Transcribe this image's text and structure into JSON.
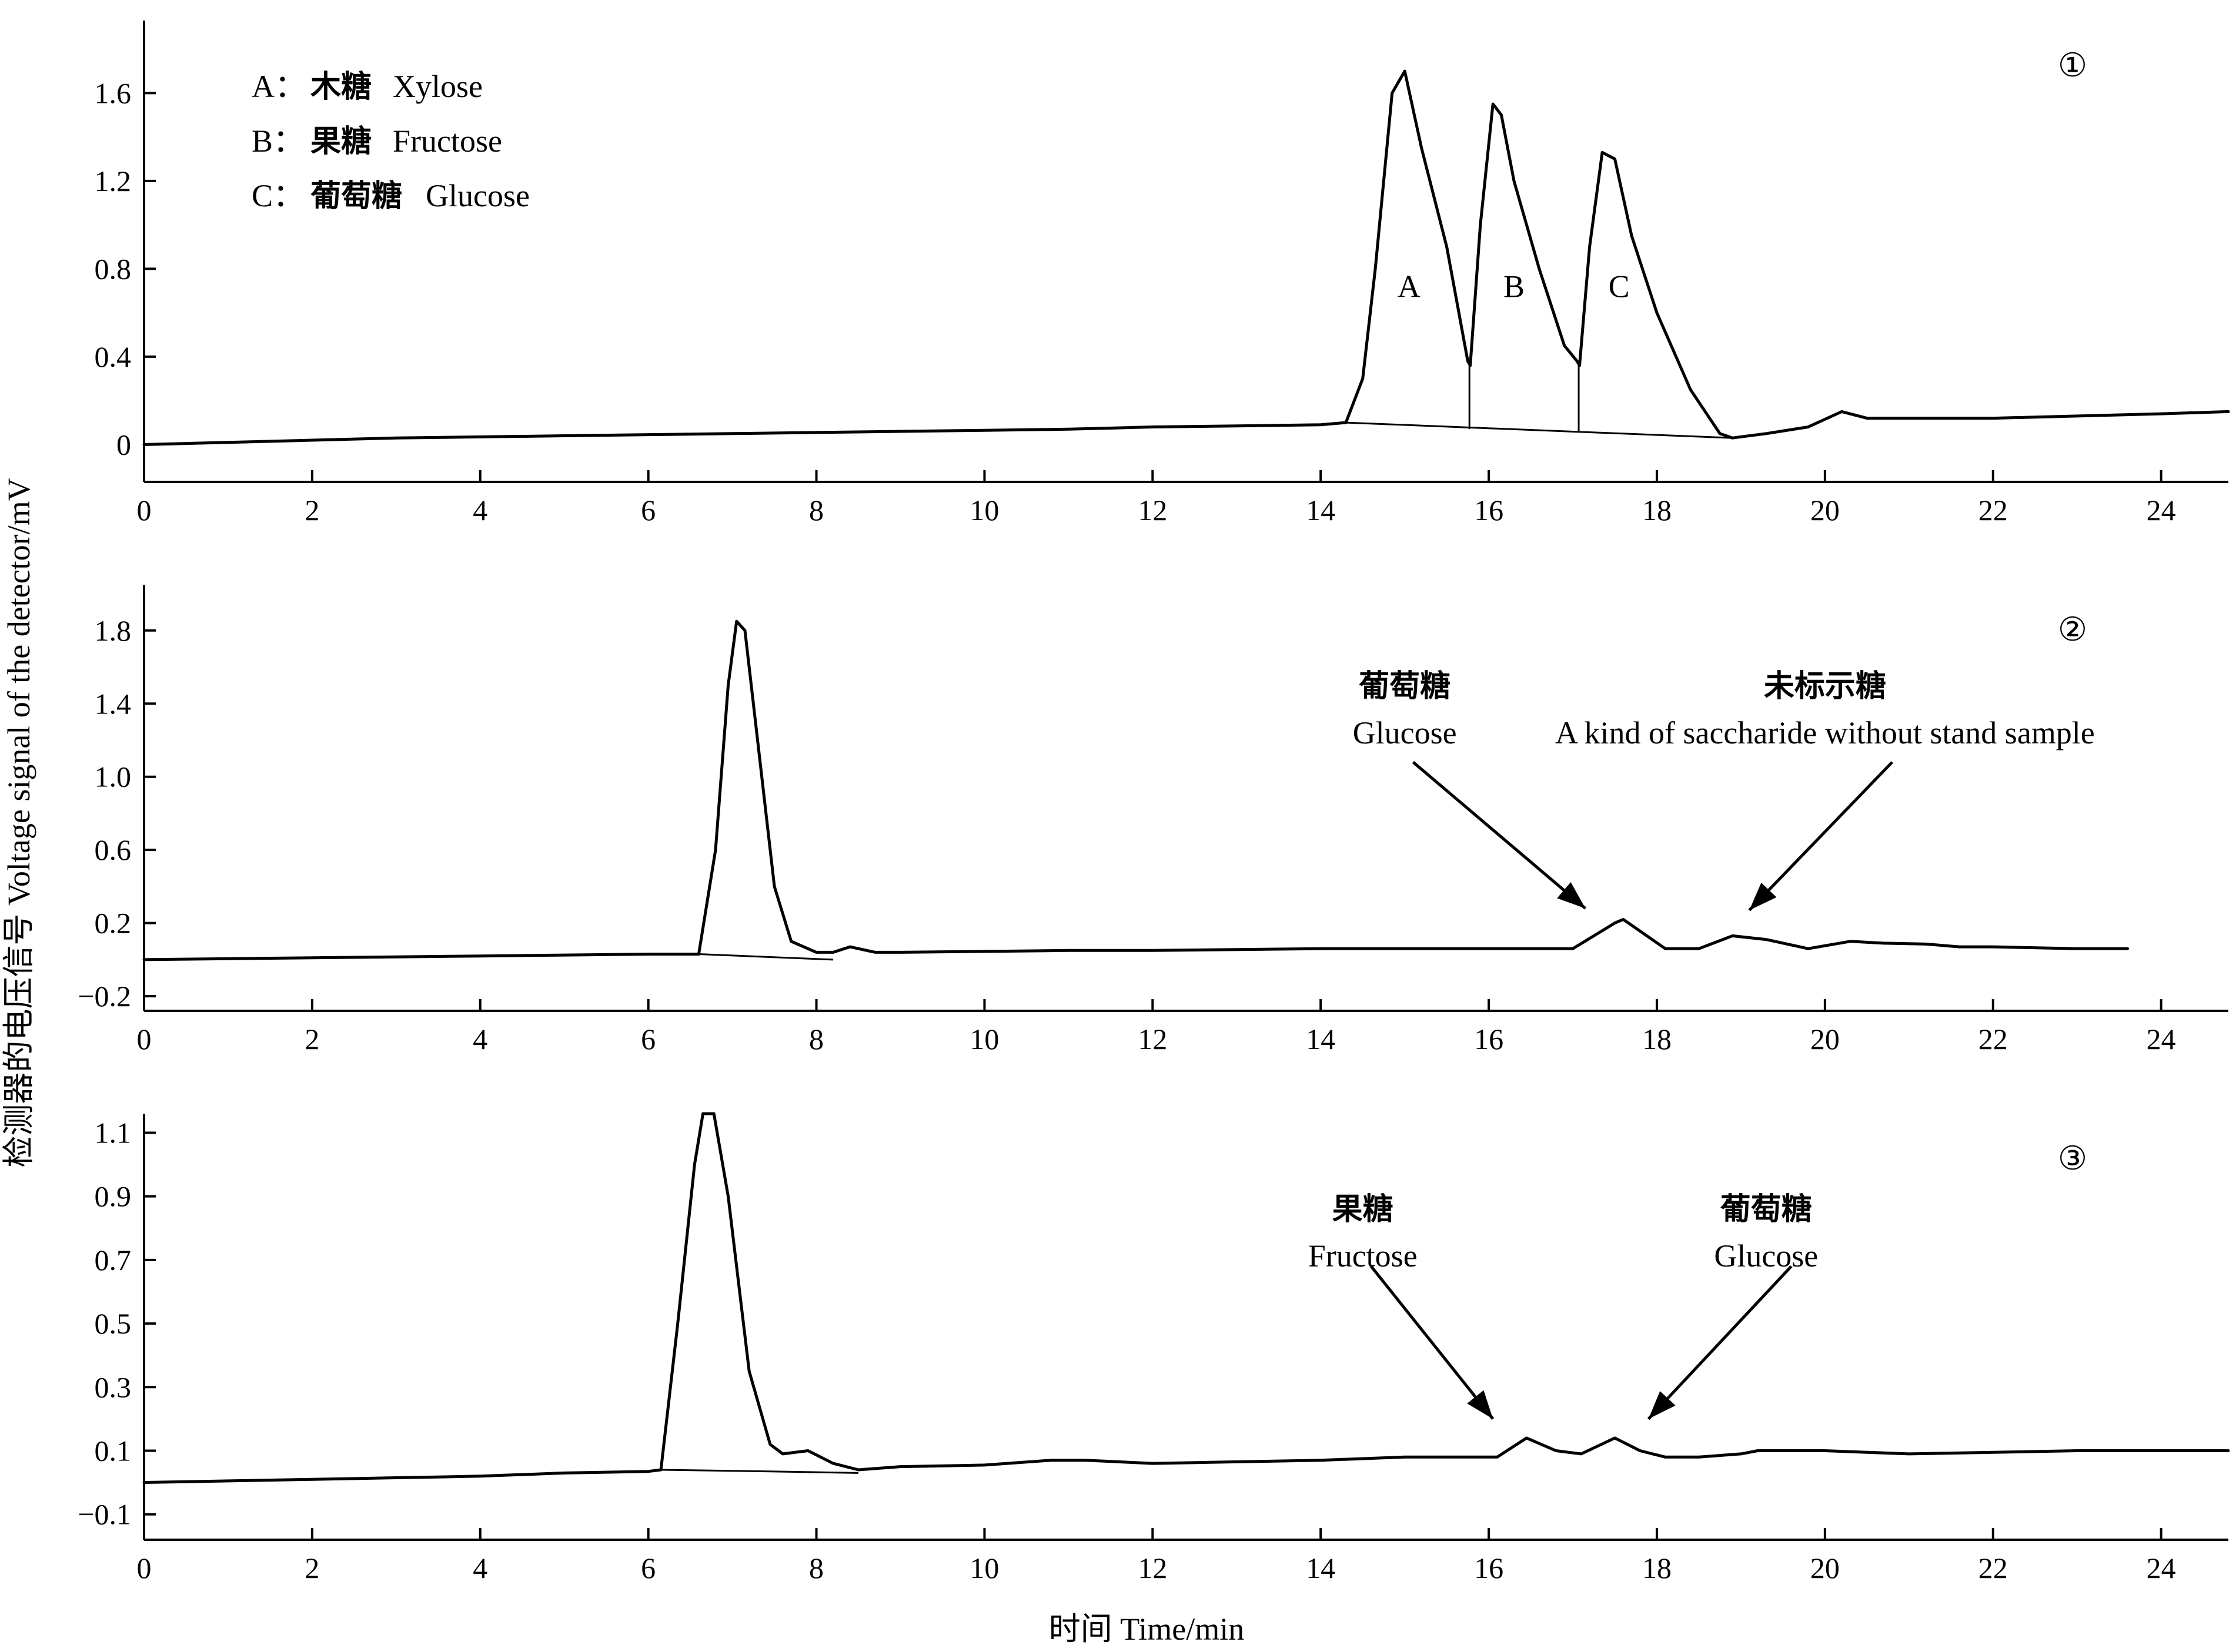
{
  "axis_labels": {
    "ylabel": "检测器的电压信号 Voltage signal of the detector/mV",
    "xlabel": "时间 Time/min"
  },
  "chart_data": [
    {
      "type": "line",
      "panel": "①",
      "x_ticks": [
        0,
        2,
        4,
        6,
        8,
        10,
        12,
        14,
        16,
        18,
        20,
        22,
        24
      ],
      "y_ticks": [
        0,
        0.4,
        0.8,
        1.2,
        1.6
      ],
      "xlim": [
        0,
        24.8
      ],
      "ylim": [
        -0.17,
        1.93
      ],
      "series": [
        {
          "x": [
            0,
            1,
            2,
            3,
            4,
            5,
            6,
            7,
            8,
            9,
            10,
            11,
            12,
            13,
            14,
            14.3,
            14.5,
            14.65,
            14.85,
            15.0,
            15.2,
            15.5,
            15.75,
            15.78,
            15.9,
            16.05,
            16.15,
            16.3,
            16.6,
            16.9,
            17.05,
            17.08,
            17.2,
            17.35,
            17.5,
            17.7,
            18.0,
            18.4,
            18.75,
            18.9,
            19.3,
            19.8,
            20.2,
            20.5,
            21,
            22,
            23,
            24,
            24.8
          ],
          "y": [
            0,
            0.01,
            0.02,
            0.03,
            0.035,
            0.04,
            0.045,
            0.05,
            0.055,
            0.06,
            0.065,
            0.07,
            0.08,
            0.085,
            0.09,
            0.1,
            0.3,
            0.8,
            1.6,
            1.7,
            1.35,
            0.9,
            0.38,
            0.36,
            1.0,
            1.55,
            1.5,
            1.2,
            0.8,
            0.45,
            0.38,
            0.36,
            0.9,
            1.33,
            1.3,
            0.95,
            0.6,
            0.25,
            0.05,
            0.03,
            0.05,
            0.08,
            0.15,
            0.12,
            0.12,
            0.12,
            0.13,
            0.14,
            0.15
          ]
        }
      ],
      "peak_dividers": [
        {
          "x": 15.77,
          "y_top": 0.38,
          "y_bottom": 0.07
        },
        {
          "x": 17.07,
          "y_top": 0.38,
          "y_bottom": 0.06
        }
      ],
      "peak_baseline": {
        "x": [
          14.3,
          18.9
        ],
        "y": [
          0.1,
          0.03
        ]
      },
      "annotations": [
        {
          "text": "A",
          "x": 15.05,
          "y": 0.72
        },
        {
          "text": "B",
          "x": 16.3,
          "y": 0.72
        },
        {
          "text": "C",
          "x": 17.55,
          "y": 0.72
        }
      ],
      "legend": [
        {
          "key": "A：",
          "cn": "木糖",
          "en": "Xylose"
        },
        {
          "key": "B：",
          "cn": "果糖",
          "en": "Fructose"
        },
        {
          "key": "C：",
          "cn": "葡萄糖",
          "en": "Glucose"
        }
      ]
    },
    {
      "type": "line",
      "panel": "②",
      "x_ticks": [
        0,
        2,
        4,
        6,
        8,
        10,
        12,
        14,
        16,
        18,
        20,
        22,
        24
      ],
      "y_ticks": [
        -0.2,
        0.2,
        0.6,
        1.0,
        1.4,
        1.8
      ],
      "y_tick_labels": [
        "−0.2",
        "0.2",
        "0.6",
        "1.0",
        "1.4",
        "1.8"
      ],
      "xlim": [
        0,
        24.8
      ],
      "ylim": [
        -0.28,
        2.05
      ],
      "series": [
        {
          "x": [
            0,
            1,
            2,
            3,
            4,
            5,
            6,
            6.6,
            6.8,
            6.95,
            7.05,
            7.15,
            7.3,
            7.5,
            7.7,
            8.0,
            8.2,
            8.4,
            8.7,
            9,
            10,
            11,
            12,
            13,
            14,
            15,
            16,
            17,
            17.5,
            17.6,
            18.1,
            18.5,
            18.9,
            19.3,
            19.8,
            20.3,
            20.7,
            21.2,
            21.6,
            22,
            23,
            23.6
          ],
          "y": [
            0,
            0.005,
            0.01,
            0.015,
            0.02,
            0.025,
            0.03,
            0.03,
            0.6,
            1.5,
            1.85,
            1.8,
            1.2,
            0.4,
            0.1,
            0.04,
            0.04,
            0.07,
            0.04,
            0.04,
            0.045,
            0.05,
            0.05,
            0.055,
            0.06,
            0.06,
            0.06,
            0.06,
            0.2,
            0.22,
            0.06,
            0.06,
            0.13,
            0.11,
            0.06,
            0.1,
            0.09,
            0.085,
            0.07,
            0.07,
            0.06,
            0.06
          ]
        }
      ],
      "peak_baseline": {
        "x": [
          6.6,
          8.2
        ],
        "y": [
          0.03,
          0.0
        ]
      },
      "annotations": [
        {
          "cn": "葡萄糖",
          "en": "Glucose",
          "text_x": 15.0,
          "arrow_from_x": 15.1,
          "arrow_from_y": 1.08,
          "arrow_to_x": 17.15,
          "arrow_to_y": 0.28
        },
        {
          "cn": "未标示糖",
          "en": "A kind of saccharide without stand sample",
          "text_x": 20.0,
          "arrow_from_x": 20.8,
          "arrow_from_y": 1.08,
          "arrow_to_x": 19.1,
          "arrow_to_y": 0.27
        }
      ]
    },
    {
      "type": "line",
      "panel": "③",
      "x_ticks": [
        0,
        2,
        4,
        6,
        8,
        10,
        12,
        14,
        16,
        18,
        20,
        22,
        24
      ],
      "y_ticks": [
        -0.1,
        0.1,
        0.3,
        0.5,
        0.7,
        0.9,
        1.1
      ],
      "y_tick_labels": [
        "−0.1",
        "0.1",
        "0.3",
        "0.5",
        "0.7",
        "0.9",
        "1.1"
      ],
      "xlim": [
        0,
        24.8
      ],
      "ylim": [
        -0.18,
        1.16
      ],
      "series": [
        {
          "x": [
            0,
            1,
            2,
            3,
            4,
            5,
            6,
            6.15,
            6.35,
            6.55,
            6.65,
            6.78,
            6.95,
            7.2,
            7.45,
            7.6,
            7.9,
            8.2,
            8.5,
            9,
            10,
            10.8,
            11.2,
            12,
            13,
            14,
            15,
            16,
            16.1,
            16.45,
            16.8,
            17.1,
            17.5,
            17.8,
            18.1,
            18.5,
            19,
            19.2,
            20,
            21,
            22,
            23,
            24,
            24.8
          ],
          "y": [
            0,
            0.005,
            0.01,
            0.015,
            0.02,
            0.03,
            0.035,
            0.04,
            0.5,
            1.0,
            1.16,
            1.16,
            0.9,
            0.35,
            0.12,
            0.09,
            0.1,
            0.06,
            0.04,
            0.05,
            0.055,
            0.07,
            0.07,
            0.06,
            0.065,
            0.07,
            0.08,
            0.08,
            0.08,
            0.14,
            0.1,
            0.09,
            0.14,
            0.1,
            0.08,
            0.08,
            0.09,
            0.1,
            0.1,
            0.09,
            0.095,
            0.1,
            0.1,
            0.1
          ]
        }
      ],
      "peak_baseline": {
        "x": [
          6.15,
          7.45,
          8.5
        ],
        "y": [
          0.04,
          0.035,
          0.03
        ]
      },
      "annotations": [
        {
          "cn": "果糖",
          "en": "Fructose",
          "text_x": 14.5,
          "arrow_from_x": 14.6,
          "arrow_from_y": 0.68,
          "arrow_to_x": 16.05,
          "arrow_to_y": 0.2
        },
        {
          "cn": "葡萄糖",
          "en": "Glucose",
          "text_x": 19.3,
          "arrow_from_x": 19.6,
          "arrow_from_y": 0.68,
          "arrow_to_x": 17.9,
          "arrow_to_y": 0.2
        }
      ]
    }
  ]
}
